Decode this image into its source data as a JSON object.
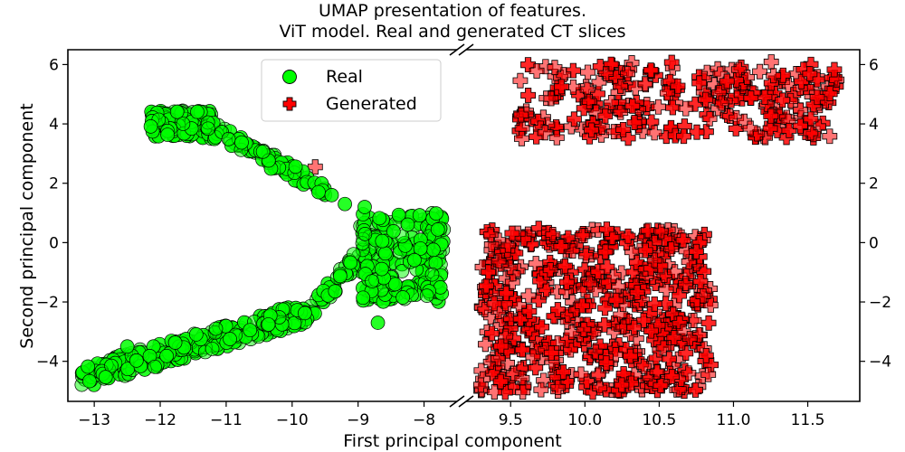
{
  "chart_data": {
    "type": "scatter",
    "title_lines": [
      "UMAP presentation of features.",
      "ViT model. Real and generated CT slices"
    ],
    "xlabel": "First principal component",
    "ylabel": "Second principal component",
    "broken_x_axis": true,
    "left_panel": {
      "xlim": [
        -13.4,
        -7.5
      ],
      "xticks": [
        -13,
        -12,
        -11,
        -10,
        -9,
        -8
      ],
      "xtick_labels": [
        "−13",
        "−12",
        "−11",
        "−10",
        "−9",
        "−8"
      ]
    },
    "right_panel": {
      "xlim": [
        9.2,
        11.85
      ],
      "xticks": [
        9.5,
        10.0,
        10.5,
        11.0,
        11.5
      ],
      "xtick_labels": [
        "9.5",
        "10.0",
        "10.5",
        "11.0",
        "11.5"
      ]
    },
    "ylim": [
      -5.35,
      6.5
    ],
    "yticks": [
      -4,
      -2,
      0,
      2,
      4,
      6
    ],
    "ytick_labels": [
      "−4",
      "−2",
      "0",
      "2",
      "4",
      "6"
    ],
    "legend": {
      "placement": "upper-center of left panel",
      "entries": [
        "Real",
        "Generated"
      ]
    },
    "series": [
      {
        "name": "Real",
        "marker": "circle",
        "color": "#00ff00",
        "edge_color": "#000000",
        "clusters": [
          {
            "region": "top-left",
            "n": 130,
            "x": [
              -12.15,
              -11.2
            ],
            "y": [
              3.5,
              4.45
            ]
          },
          {
            "region": "diagonal",
            "n": 90,
            "x": [
              -11.3,
              -9.5
            ],
            "y": [
              1.8,
              3.9
            ]
          },
          {
            "region": "middle-right",
            "n": 210,
            "x": [
              -9.0,
              -7.7
            ],
            "y": [
              -2.0,
              1.0
            ]
          },
          {
            "region": "lower-connector",
            "n": 50,
            "x": [
              -9.9,
              -9.05
            ],
            "y": [
              -2.8,
              -0.6
            ]
          },
          {
            "region": "bottom-band",
            "n": 260,
            "x": [
              -13.2,
              -9.8
            ],
            "y": [
              -4.7,
              -2.4
            ]
          }
        ],
        "extra_points": [
          [
            -9.6,
            1.7
          ],
          [
            -9.4,
            1.6
          ],
          [
            -8.9,
            1.2
          ],
          [
            -9.2,
            1.3
          ],
          [
            -12.5,
            -3.5
          ],
          [
            -8.7,
            -2.7
          ]
        ]
      },
      {
        "name": "Generated",
        "marker": "plus",
        "color": "#ff0000",
        "edge_color": "#000000",
        "clusters": [
          {
            "region": "upper",
            "n": 260,
            "x": [
              9.55,
              11.7
            ],
            "y": [
              3.5,
              6.1
            ]
          },
          {
            "region": "lower",
            "n": 520,
            "x": [
              9.3,
              10.85
            ],
            "y": [
              -5.05,
              0.5
            ]
          }
        ],
        "extra_points": [
          [
            -9.65,
            2.55
          ],
          [
            10.75,
            -0.3
          ],
          [
            10.6,
            -3.2
          ],
          [
            9.3,
            -4.8
          ],
          [
            10.1,
            -4.9
          ]
        ]
      }
    ]
  }
}
